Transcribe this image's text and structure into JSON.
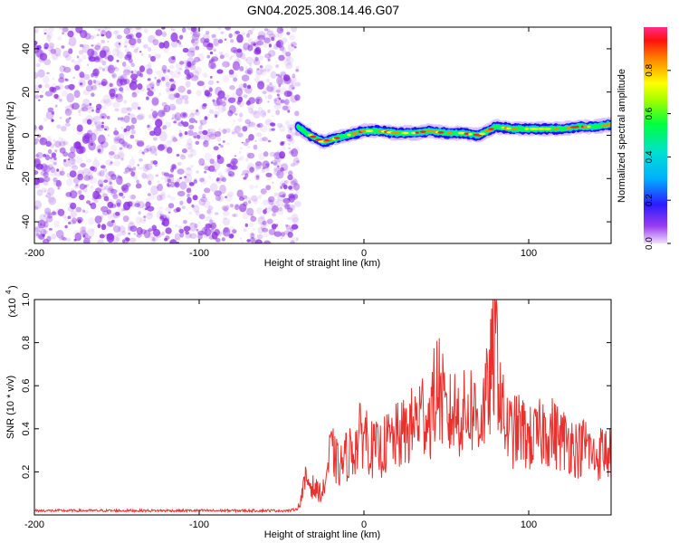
{
  "title": "GN04.2025.308.14.46.G07",
  "colors": {
    "scatter_purple": "#8a2be2",
    "snr_line": "#e8302c",
    "axis": "#000000",
    "background": "#ffffff"
  },
  "chart_data": [
    {
      "type": "heatmap",
      "title": "GN04.2025.308.14.46.G07",
      "xlabel": "Height of straight line (km)",
      "ylabel": "Frequency (Hz)",
      "xlim": [
        -200,
        150
      ],
      "ylim": [
        -50,
        50
      ],
      "x_ticks": [
        -200,
        -100,
        0,
        100
      ],
      "x_tick_labels": [
        "-200",
        "-100",
        "0",
        "100"
      ],
      "y_ticks": [
        -40,
        -20,
        0,
        20,
        40
      ],
      "y_tick_labels": [
        "-40",
        "-20",
        "0",
        "20",
        "40"
      ],
      "noise_region_x": [
        -200,
        -40
      ],
      "ridge_x": [
        -40,
        -35,
        -30,
        -25,
        -20,
        -15,
        -10,
        -5,
        0,
        10,
        20,
        30,
        40,
        50,
        60,
        70,
        75,
        80,
        90,
        100,
        110,
        120,
        130,
        140,
        150
      ],
      "ridge_frequency": [
        4,
        1,
        -1,
        -3,
        -2,
        -1,
        0,
        1,
        2,
        2,
        1,
        1,
        2,
        1,
        1,
        0,
        2,
        4,
        3,
        3,
        3,
        3,
        4,
        4,
        5
      ],
      "colorbar": {
        "label": "Normalized spectral amplitude",
        "range": [
          0,
          1
        ],
        "ticks": [
          0.0,
          0.2,
          0.4,
          0.6,
          0.8
        ],
        "tick_labels": [
          "0.0",
          "0.2",
          "0.4",
          "0.6",
          "0.8"
        ]
      }
    },
    {
      "type": "line",
      "xlabel": "Height of straight line (km)",
      "ylabel": "SNR (10 * v/v)",
      "scale_label": "(x10",
      "scale_exponent": "4",
      "xlim": [
        -200,
        150
      ],
      "ylim": [
        0,
        1.0
      ],
      "x_ticks": [
        -200,
        -100,
        0,
        100
      ],
      "x_tick_labels": [
        "-200",
        "-100",
        "0",
        "100"
      ],
      "y_ticks": [
        0.2,
        0.4,
        0.6,
        0.8,
        1.0
      ],
      "y_tick_labels": [
        "0.2",
        "0.4",
        "0.6",
        "0.8",
        "1.0"
      ],
      "series": [
        {
          "name": "SNR",
          "x": [
            -200,
            -180,
            -160,
            -140,
            -120,
            -100,
            -80,
            -60,
            -45,
            -40,
            -35,
            -30,
            -25,
            -20,
            -15,
            -10,
            -5,
            0,
            5,
            10,
            15,
            20,
            25,
            30,
            35,
            40,
            45,
            50,
            55,
            60,
            65,
            70,
            75,
            80,
            85,
            90,
            95,
            100,
            105,
            110,
            115,
            120,
            125,
            130,
            135,
            140,
            145,
            150
          ],
          "values": [
            0.02,
            0.02,
            0.02,
            0.02,
            0.02,
            0.02,
            0.02,
            0.02,
            0.02,
            0.03,
            0.17,
            0.12,
            0.1,
            0.3,
            0.22,
            0.28,
            0.32,
            0.4,
            0.3,
            0.3,
            0.34,
            0.36,
            0.38,
            0.42,
            0.48,
            0.45,
            0.62,
            0.44,
            0.48,
            0.46,
            0.5,
            0.44,
            0.55,
            0.8,
            0.42,
            0.38,
            0.4,
            0.35,
            0.36,
            0.4,
            0.38,
            0.35,
            0.34,
            0.3,
            0.33,
            0.26,
            0.3,
            0.28
          ]
        }
      ]
    }
  ]
}
